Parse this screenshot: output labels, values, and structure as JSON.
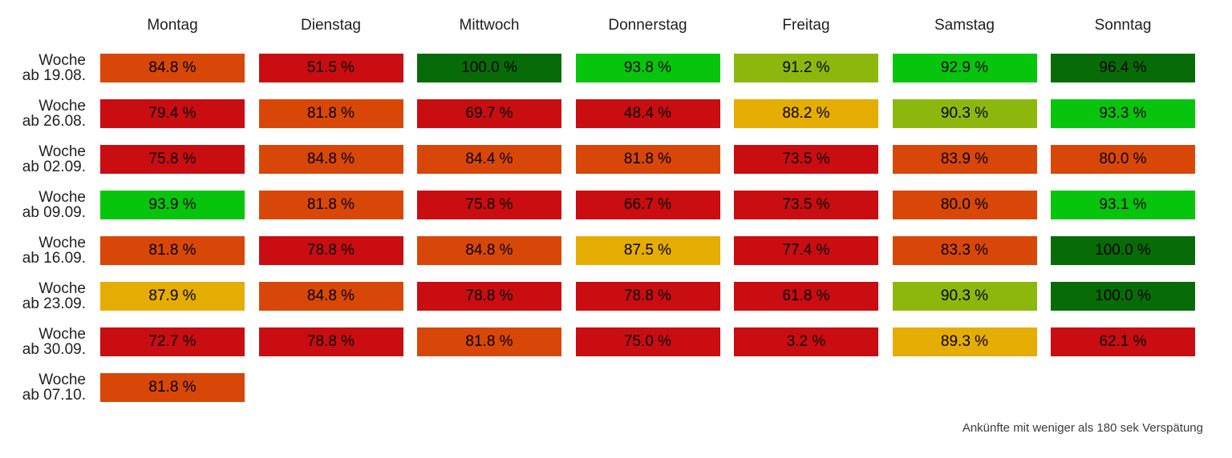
{
  "chart_data": {
    "type": "heatmap",
    "columns": [
      "Montag",
      "Dienstag",
      "Mittwoch",
      "Donnerstag",
      "Freitag",
      "Samstag",
      "Sonntag"
    ],
    "rows": [
      {
        "label": [
          "Woche",
          "ab 19.08."
        ],
        "values": [
          84.8,
          51.5,
          100.0,
          93.8,
          91.2,
          92.9,
          96.4
        ]
      },
      {
        "label": [
          "Woche",
          "ab 26.08."
        ],
        "values": [
          79.4,
          81.8,
          69.7,
          48.4,
          88.2,
          90.3,
          93.3
        ]
      },
      {
        "label": [
          "Woche",
          "ab 02.09."
        ],
        "values": [
          75.8,
          84.8,
          84.4,
          81.8,
          73.5,
          83.9,
          80.0
        ]
      },
      {
        "label": [
          "Woche",
          "ab 09.09."
        ],
        "values": [
          93.9,
          81.8,
          75.8,
          66.7,
          73.5,
          80.0,
          93.1
        ]
      },
      {
        "label": [
          "Woche",
          "ab 16.09."
        ],
        "values": [
          81.8,
          78.8,
          84.8,
          87.5,
          77.4,
          83.3,
          100.0
        ]
      },
      {
        "label": [
          "Woche",
          "ab 23.09."
        ],
        "values": [
          87.9,
          84.8,
          78.8,
          78.8,
          61.8,
          90.3,
          100.0
        ]
      },
      {
        "label": [
          "Woche",
          "ab 30.09."
        ],
        "values": [
          72.7,
          78.8,
          81.8,
          75.0,
          3.2,
          89.3,
          62.1
        ]
      },
      {
        "label": [
          "Woche",
          "ab 07.10."
        ],
        "values": [
          81.8,
          null,
          null,
          null,
          null,
          null,
          null
        ]
      }
    ],
    "cell_colors": [
      [
        "orange",
        "red",
        "darkgreen",
        "green",
        "chartreuse",
        "green",
        "darkgreen"
      ],
      [
        "red",
        "orange",
        "red",
        "red",
        "amber",
        "chartreuse",
        "green"
      ],
      [
        "red",
        "orange",
        "orange",
        "orange",
        "red",
        "orange",
        "orange"
      ],
      [
        "green",
        "orange",
        "red",
        "red",
        "red",
        "orange",
        "green"
      ],
      [
        "orange",
        "red",
        "orange",
        "amber",
        "red",
        "orange",
        "darkgreen"
      ],
      [
        "amber",
        "orange",
        "red",
        "red",
        "red",
        "chartreuse",
        "darkgreen"
      ],
      [
        "red",
        "red",
        "orange",
        "red",
        "red",
        "amber",
        "red"
      ],
      [
        "orange",
        null,
        null,
        null,
        null,
        null,
        null
      ]
    ],
    "palette": {
      "red": "#C90D11",
      "orange": "#D84708",
      "amber": "#E5AD02",
      "chartreuse": "#8CB80E",
      "green": "#06C50C",
      "darkgreen": "#076C07"
    },
    "cell_text_color": "#000000",
    "value_format": "{v} %",
    "footnote": "Ankünfte mit weniger als 180 sek Verspätung",
    "layout": {
      "legend": "none",
      "grid": "off",
      "missing_cells": "blank"
    }
  }
}
